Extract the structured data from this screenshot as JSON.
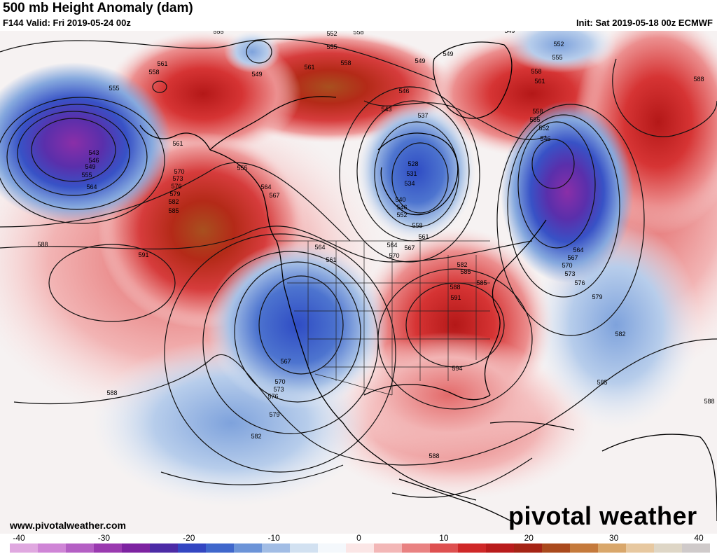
{
  "header": {
    "title": "500 mb Height Anomaly (dam)",
    "valid": "F144 Valid: Fri 2019-05-24 00z",
    "init": "Init: Sat 2019-05-18 00z ECMWF"
  },
  "footer": {
    "url": "www.pivotalweather.com",
    "logo": "pivotal weather"
  },
  "colorbar": {
    "ticks": [
      "-40",
      "-30",
      "-20",
      "-10",
      "0",
      "10",
      "20",
      "30",
      "40"
    ],
    "colors": [
      "#e0a8e0",
      "#cf85d6",
      "#b45fc4",
      "#9a3ab0",
      "#7d23a1",
      "#4c2ba6",
      "#3346c2",
      "#3f67cc",
      "#6c94d8",
      "#a2bde5",
      "#d2e1f1",
      "#f4f8fc",
      "#fbe6e6",
      "#f3b7b7",
      "#e98282",
      "#de5050",
      "#cf2828",
      "#b91c1c",
      "#a52415",
      "#aa4a1d",
      "#c57a3c",
      "#d9a76b",
      "#e7c8a0",
      "#ded6c6",
      "#cfcaca"
    ]
  },
  "contour_labels": [
    {
      "text": "555"
    },
    {
      "text": "552"
    },
    {
      "text": "555"
    },
    {
      "text": "558"
    },
    {
      "text": "549"
    },
    {
      "text": "549"
    },
    {
      "text": "552"
    },
    {
      "text": "555"
    },
    {
      "text": "561"
    },
    {
      "text": "558"
    },
    {
      "text": "555"
    },
    {
      "text": "549"
    },
    {
      "text": "561"
    },
    {
      "text": "558"
    },
    {
      "text": "546"
    },
    {
      "text": "549"
    },
    {
      "text": "558"
    },
    {
      "text": "561"
    },
    {
      "text": "588"
    },
    {
      "text": "543"
    },
    {
      "text": "537"
    },
    {
      "text": "558"
    },
    {
      "text": "555"
    },
    {
      "text": "552"
    },
    {
      "text": "546"
    },
    {
      "text": "543"
    },
    {
      "text": "546"
    },
    {
      "text": "549"
    },
    {
      "text": "555"
    },
    {
      "text": "564"
    },
    {
      "text": "561"
    },
    {
      "text": "555"
    },
    {
      "text": "528"
    },
    {
      "text": "531"
    },
    {
      "text": "534"
    },
    {
      "text": "540"
    },
    {
      "text": "546"
    },
    {
      "text": "552"
    },
    {
      "text": "570"
    },
    {
      "text": "573"
    },
    {
      "text": "576"
    },
    {
      "text": "579"
    },
    {
      "text": "582"
    },
    {
      "text": "585"
    },
    {
      "text": "564"
    },
    {
      "text": "567"
    },
    {
      "text": "558"
    },
    {
      "text": "561"
    },
    {
      "text": "564"
    },
    {
      "text": "567"
    },
    {
      "text": "570"
    },
    {
      "text": "573"
    },
    {
      "text": "576"
    },
    {
      "text": "579"
    },
    {
      "text": "588"
    },
    {
      "text": "591"
    },
    {
      "text": "564"
    },
    {
      "text": "561"
    },
    {
      "text": "567"
    },
    {
      "text": "570"
    },
    {
      "text": "564"
    },
    {
      "text": "582"
    },
    {
      "text": "585"
    },
    {
      "text": "588"
    },
    {
      "text": "591"
    },
    {
      "text": "582"
    },
    {
      "text": "567"
    },
    {
      "text": "570"
    },
    {
      "text": "573"
    },
    {
      "text": "576"
    },
    {
      "text": "579"
    },
    {
      "text": "582"
    },
    {
      "text": "594"
    },
    {
      "text": "585"
    },
    {
      "text": "588"
    },
    {
      "text": "585"
    },
    {
      "text": "588"
    },
    {
      "text": "588"
    }
  ]
}
